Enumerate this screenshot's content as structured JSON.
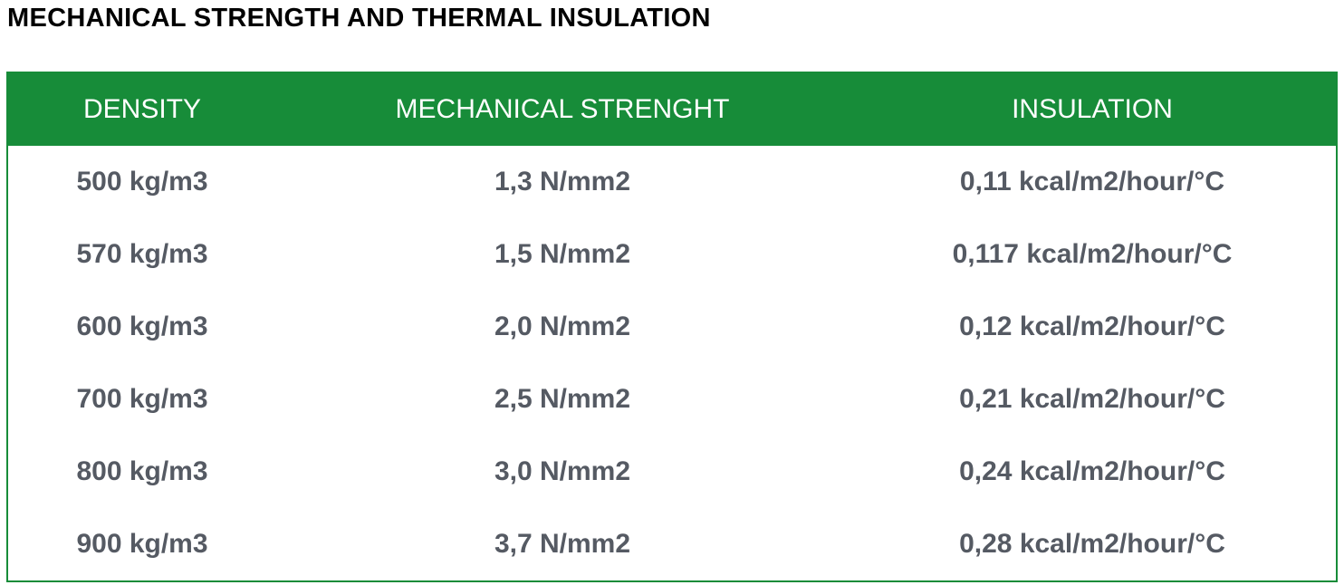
{
  "title": "MECHANICAL STRENGTH AND THERMAL INSULATION",
  "table": {
    "header": [
      "DENSITY",
      "MECHANICAL STRENGHT",
      "INSULATION"
    ],
    "rows": [
      [
        "500 kg/m3",
        "1,3 N/mm2",
        "0,11 kcal/m2/hour/°C"
      ],
      [
        "570 kg/m3",
        "1,5 N/mm2",
        "0,117 kcal/m2/hour/°C"
      ],
      [
        "600 kg/m3",
        "2,0 N/mm2",
        "0,12 kcal/m2/hour/°C"
      ],
      [
        "700 kg/m3",
        "2,5 N/mm2",
        "0,21 kcal/m2/hour/°C"
      ],
      [
        "800 kg/m3",
        "3,0 N/mm2",
        "0,24 kcal/m2/hour/°C"
      ],
      [
        "900 kg/m3",
        "3,7 N/mm2",
        "0,28 kcal/m2/hour/°C"
      ]
    ]
  }
}
